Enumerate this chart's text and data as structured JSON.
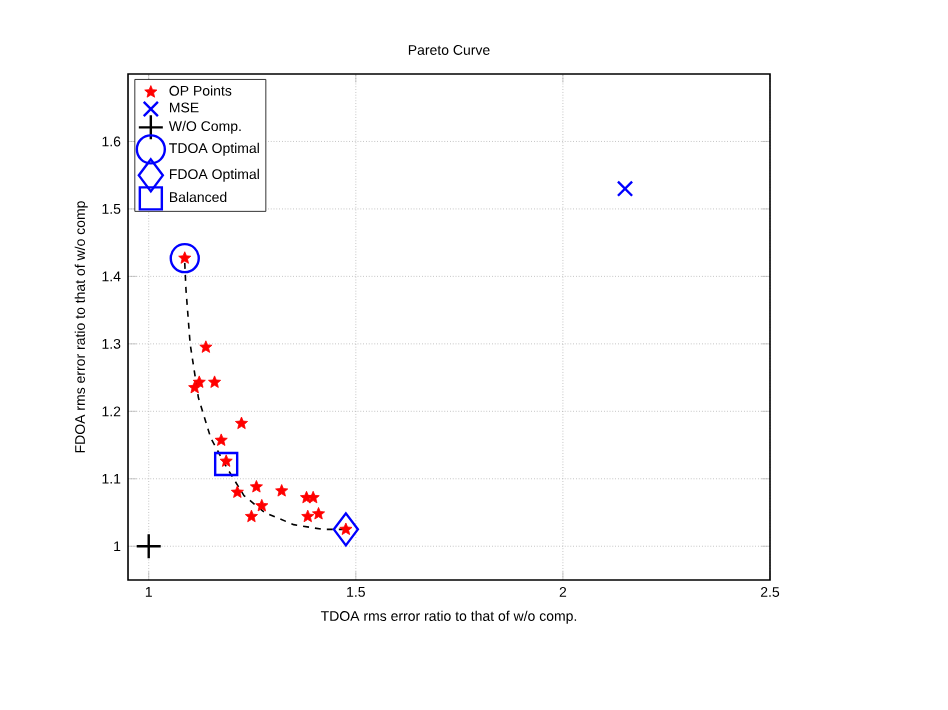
{
  "chart_data": {
    "type": "scatter",
    "title": "Pareto Curve",
    "xlabel": "TDOA rms error ratio to that of w/o comp.",
    "ylabel": "FDOA rms error ratio to that of w/o comp",
    "xlim": [
      0.95,
      2.5
    ],
    "ylim": [
      0.95,
      1.7
    ],
    "xticks": [
      1,
      1.5,
      2,
      2.5
    ],
    "yticks": [
      1,
      1.1,
      1.2,
      1.3,
      1.4,
      1.5,
      1.6
    ],
    "grid": true,
    "legend": "top left",
    "series": [
      {
        "name": "OP Points",
        "color": "#ff0000",
        "marker": "star",
        "x": [
          1.087,
          1.138,
          1.111,
          1.122,
          1.159,
          1.224,
          1.175,
          1.187,
          1.214,
          1.26,
          1.273,
          1.248,
          1.321,
          1.381,
          1.397,
          1.384,
          1.41,
          1.476
        ],
        "values": [
          1.427,
          1.295,
          1.235,
          1.243,
          1.243,
          1.182,
          1.157,
          1.126,
          1.08,
          1.088,
          1.06,
          1.044,
          1.082,
          1.072,
          1.072,
          1.044,
          1.048,
          1.025
        ]
      },
      {
        "name": "MSE",
        "color": "#0000ff",
        "marker": "cross",
        "x": [
          2.15
        ],
        "values": [
          1.53
        ]
      },
      {
        "name": "W/O Comp.",
        "color": "#000000",
        "marker": "plus",
        "x": [
          1
        ],
        "values": [
          1
        ]
      },
      {
        "name": "TDOA Optimal",
        "color": "#0000ff",
        "marker": "circle",
        "x": [
          1.087
        ],
        "values": [
          1.427
        ]
      },
      {
        "name": "FDOA Optimal",
        "color": "#0000ff",
        "marker": "diamond",
        "x": [
          1.476
        ],
        "values": [
          1.025
        ]
      },
      {
        "name": "Balanced",
        "color": "#0000ff",
        "marker": "square",
        "x": [
          1.187
        ],
        "values": [
          1.122
        ]
      },
      {
        "type": "line",
        "color": "#000000",
        "line_style": "dashed",
        "marker": "none",
        "x": [
          1.087,
          1.09,
          1.1,
          1.12,
          1.15,
          1.19,
          1.23,
          1.28,
          1.35,
          1.42,
          1.476
        ],
        "values": [
          1.42,
          1.38,
          1.3,
          1.22,
          1.16,
          1.115,
          1.075,
          1.05,
          1.032,
          1.025,
          1.025
        ]
      }
    ]
  }
}
